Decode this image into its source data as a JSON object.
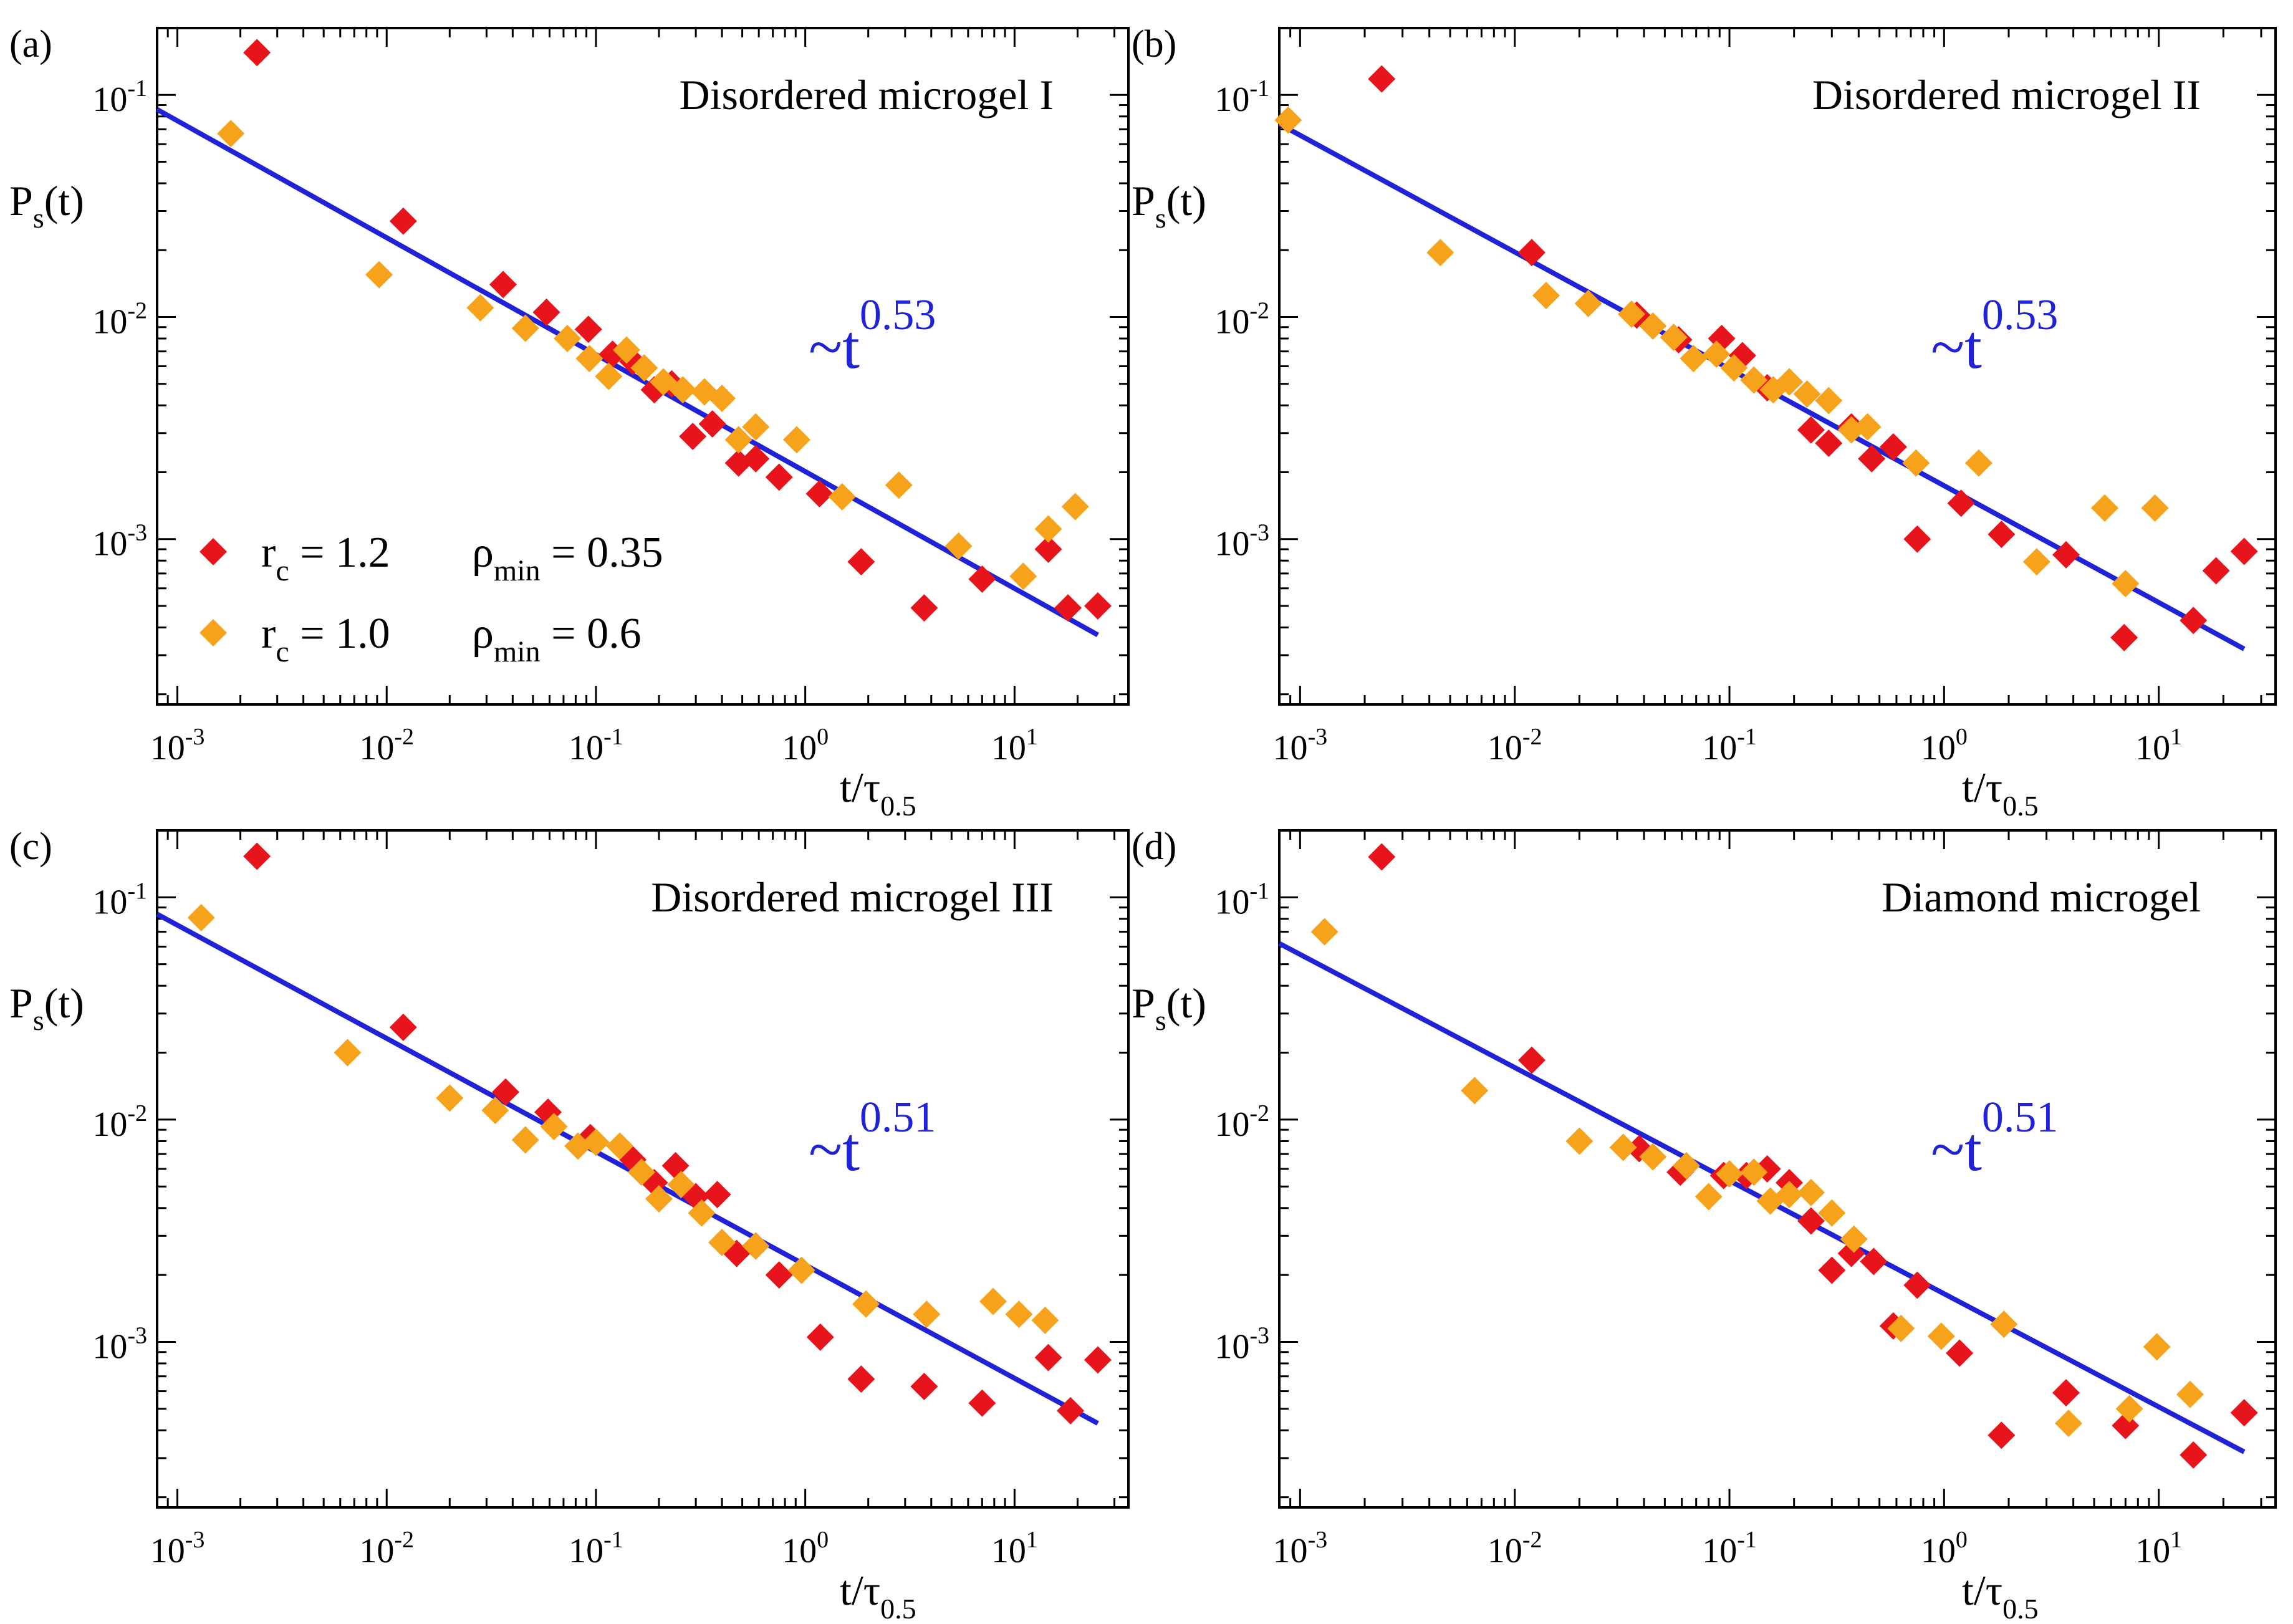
{
  "figure": {
    "colors": {
      "series_a": "#e8141b",
      "series_b": "#f7a21b",
      "fit_line": "#1f22d6",
      "axis": "#000000",
      "background": "#ffffff"
    }
  },
  "chart_data": [
    {
      "panel_label": "(a)",
      "title": "Disordered microgel I",
      "type": "scatter",
      "xlabel_main": "t/τ",
      "xlabel_sub": "0.5",
      "ylabel_main": "P",
      "ylabel_sub": "s",
      "ylabel_tail": "(t)",
      "x_scale": "log",
      "y_scale": "log",
      "xlim": [
        0.0008,
        35
      ],
      "ylim": [
        0.00018,
        0.2
      ],
      "x_ticks": [
        {
          "base": "10",
          "exp": "-3",
          "value": 0.001
        },
        {
          "base": "10",
          "exp": "-2",
          "value": 0.01
        },
        {
          "base": "10",
          "exp": "-1",
          "value": 0.1
        },
        {
          "base": "10",
          "exp": "0",
          "value": 1
        },
        {
          "base": "10",
          "exp": "1",
          "value": 10
        }
      ],
      "y_ticks": [
        {
          "base": "10",
          "exp": "-3",
          "value": 0.001
        },
        {
          "base": "10",
          "exp": "-2",
          "value": 0.01
        },
        {
          "base": "10",
          "exp": "-1",
          "value": 0.1
        }
      ],
      "annotation": {
        "prefix": "~t",
        "exponent": "0.53"
      },
      "fit_line": {
        "x": [
          0.0008,
          25
        ],
        "y": [
          0.086,
          0.00037
        ]
      },
      "legend": {
        "entries": [
          {
            "series": 0,
            "r_sym": "r",
            "r_sub": "c",
            "r_val": " = 1.2",
            "rho_sym": "ρ",
            "rho_sub": "min",
            "rho_val": " = 0.35"
          },
          {
            "series": 1,
            "r_sym": "r",
            "r_sub": "c",
            "r_val": " = 1.0",
            "rho_sym": "ρ",
            "rho_sub": "min",
            "rho_val": " = 0.6"
          }
        ]
      },
      "series": [
        {
          "x": [
            0.0024,
            0.012,
            0.036,
            0.058,
            0.092,
            0.12,
            0.15,
            0.19,
            0.23,
            0.29,
            0.36,
            0.48,
            0.58,
            0.75,
            1.17,
            1.85,
            3.7,
            7.0,
            14.5,
            18,
            25
          ],
          "y": [
            0.155,
            0.027,
            0.014,
            0.0105,
            0.0088,
            0.0068,
            0.0063,
            0.0047,
            0.005,
            0.0029,
            0.0033,
            0.0022,
            0.0023,
            0.0019,
            0.0016,
            0.00079,
            0.00049,
            0.00066,
            0.0009,
            0.00049,
            0.0005
          ]
        },
        {
          "x": [
            0.0018,
            0.0092,
            0.028,
            0.046,
            0.073,
            0.093,
            0.115,
            0.14,
            0.17,
            0.21,
            0.26,
            0.33,
            0.4,
            0.48,
            0.58,
            0.91,
            1.5,
            2.8,
            5.4,
            11,
            14.5,
            19.5
          ],
          "y": [
            0.067,
            0.0155,
            0.011,
            0.0089,
            0.008,
            0.0065,
            0.0054,
            0.0071,
            0.0059,
            0.0051,
            0.0047,
            0.0046,
            0.0043,
            0.0028,
            0.0032,
            0.0028,
            0.00155,
            0.00175,
            0.00093,
            0.00068,
            0.00111,
            0.0014
          ]
        }
      ]
    },
    {
      "panel_label": "(b)",
      "title": "Disordered microgel II",
      "type": "scatter",
      "xlabel_main": "t/τ",
      "xlabel_sub": "0.5",
      "ylabel_main": "P",
      "ylabel_sub": "s",
      "ylabel_tail": "(t)",
      "x_scale": "log",
      "y_scale": "log",
      "xlim": [
        0.0008,
        35
      ],
      "ylim": [
        0.00018,
        0.2
      ],
      "x_ticks": [
        {
          "base": "10",
          "exp": "-3",
          "value": 0.001
        },
        {
          "base": "10",
          "exp": "-2",
          "value": 0.01
        },
        {
          "base": "10",
          "exp": "-1",
          "value": 0.1
        },
        {
          "base": "10",
          "exp": "0",
          "value": 1
        },
        {
          "base": "10",
          "exp": "1",
          "value": 10
        }
      ],
      "y_ticks": [
        {
          "base": "10",
          "exp": "-3",
          "value": 0.001
        },
        {
          "base": "10",
          "exp": "-2",
          "value": 0.01
        },
        {
          "base": "10",
          "exp": "-1",
          "value": 0.1
        }
      ],
      "annotation": {
        "prefix": "~t",
        "exponent": "0.53"
      },
      "fit_line": {
        "x": [
          0.0008,
          25
        ],
        "y": [
          0.074,
          0.00032
        ]
      },
      "legend": null,
      "series": [
        {
          "x": [
            0.0024,
            0.012,
            0.037,
            0.058,
            0.092,
            0.115,
            0.15,
            0.19,
            0.24,
            0.29,
            0.37,
            0.46,
            0.58,
            0.75,
            1.2,
            1.85,
            3.7,
            6.9,
            14.5,
            18.5,
            25
          ],
          "y": [
            0.118,
            0.0195,
            0.0102,
            0.0079,
            0.008,
            0.0067,
            0.0048,
            0.0051,
            0.0031,
            0.0027,
            0.0032,
            0.0023,
            0.0026,
            0.001,
            0.00145,
            0.00105,
            0.00085,
            0.00036,
            0.00043,
            0.00072,
            0.00088
          ]
        },
        {
          "x": [
            0.00088,
            0.0045,
            0.014,
            0.022,
            0.035,
            0.044,
            0.055,
            0.068,
            0.087,
            0.105,
            0.13,
            0.16,
            0.19,
            0.23,
            0.29,
            0.37,
            0.44,
            0.74,
            1.45,
            2.7,
            5.6,
            7.0,
            9.6
          ],
          "y": [
            0.077,
            0.0195,
            0.0125,
            0.0115,
            0.0103,
            0.0091,
            0.0081,
            0.0065,
            0.0068,
            0.0059,
            0.0052,
            0.0047,
            0.0051,
            0.0045,
            0.0042,
            0.0031,
            0.0032,
            0.0022,
            0.0022,
            0.00079,
            0.00138,
            0.00063,
            0.00138
          ]
        }
      ]
    },
    {
      "panel_label": "(c)",
      "title": "Disordered microgel III",
      "type": "scatter",
      "xlabel_main": "t/τ",
      "xlabel_sub": "0.5",
      "ylabel_main": "P",
      "ylabel_sub": "s",
      "ylabel_tail": "(t)",
      "x_scale": "log",
      "y_scale": "log",
      "xlim": [
        0.0008,
        35
      ],
      "ylim": [
        0.00018,
        0.2
      ],
      "x_ticks": [
        {
          "base": "10",
          "exp": "-3",
          "value": 0.001
        },
        {
          "base": "10",
          "exp": "-2",
          "value": 0.01
        },
        {
          "base": "10",
          "exp": "-1",
          "value": 0.1
        },
        {
          "base": "10",
          "exp": "0",
          "value": 1
        },
        {
          "base": "10",
          "exp": "1",
          "value": 10
        }
      ],
      "y_ticks": [
        {
          "base": "10",
          "exp": "-3",
          "value": 0.001
        },
        {
          "base": "10",
          "exp": "-2",
          "value": 0.01
        },
        {
          "base": "10",
          "exp": "-1",
          "value": 0.1
        }
      ],
      "annotation": {
        "prefix": "~t",
        "exponent": "0.51"
      },
      "fit_line": {
        "x": [
          0.0008,
          25
        ],
        "y": [
          0.084,
          0.00043
        ]
      },
      "legend": null,
      "series": [
        {
          "x": [
            0.0024,
            0.012,
            0.037,
            0.059,
            0.094,
            0.15,
            0.19,
            0.24,
            0.3,
            0.38,
            0.47,
            0.58,
            0.75,
            1.18,
            1.85,
            3.7,
            7.0,
            14.5,
            18.5,
            25
          ],
          "y": [
            0.153,
            0.026,
            0.0133,
            0.0108,
            0.0083,
            0.0066,
            0.0052,
            0.0062,
            0.0045,
            0.0046,
            0.0025,
            0.0027,
            0.002,
            0.00105,
            0.00068,
            0.00063,
            0.00053,
            0.00085,
            0.00049,
            0.00083
          ]
        },
        {
          "x": [
            0.0013,
            0.0065,
            0.02,
            0.033,
            0.046,
            0.063,
            0.082,
            0.1,
            0.13,
            0.165,
            0.2,
            0.255,
            0.32,
            0.4,
            0.58,
            0.96,
            1.95,
            3.8,
            7.9,
            10.5,
            14
          ],
          "y": [
            0.081,
            0.02,
            0.0125,
            0.011,
            0.0081,
            0.0093,
            0.0076,
            0.0079,
            0.0076,
            0.0058,
            0.0044,
            0.0051,
            0.0038,
            0.0028,
            0.0027,
            0.0021,
            0.00148,
            0.00133,
            0.00152,
            0.00133,
            0.00125
          ]
        }
      ]
    },
    {
      "panel_label": "(d)",
      "title": "Diamond microgel",
      "type": "scatter",
      "xlabel_main": "t/τ",
      "xlabel_sub": "0.5",
      "ylabel_main": "P",
      "ylabel_sub": "s",
      "ylabel_tail": "(t)",
      "x_scale": "log",
      "y_scale": "log",
      "xlim": [
        0.0008,
        35
      ],
      "ylim": [
        0.00018,
        0.2
      ],
      "x_ticks": [
        {
          "base": "10",
          "exp": "-3",
          "value": 0.001
        },
        {
          "base": "10",
          "exp": "-2",
          "value": 0.01
        },
        {
          "base": "10",
          "exp": "-1",
          "value": 0.1
        },
        {
          "base": "10",
          "exp": "0",
          "value": 1
        },
        {
          "base": "10",
          "exp": "1",
          "value": 10
        }
      ],
      "y_ticks": [
        {
          "base": "10",
          "exp": "-3",
          "value": 0.001
        },
        {
          "base": "10",
          "exp": "-2",
          "value": 0.01
        },
        {
          "base": "10",
          "exp": "-1",
          "value": 0.1
        }
      ],
      "annotation": {
        "prefix": "~t",
        "exponent": "0.51"
      },
      "fit_line": {
        "x": [
          0.0008,
          25
        ],
        "y": [
          0.062,
          0.00032
        ]
      },
      "legend": null,
      "series": [
        {
          "x": [
            0.0024,
            0.012,
            0.038,
            0.059,
            0.094,
            0.12,
            0.15,
            0.19,
            0.24,
            0.3,
            0.37,
            0.47,
            0.58,
            0.75,
            1.18,
            1.85,
            3.7,
            7.0,
            14.5,
            25
          ],
          "y": [
            0.152,
            0.0185,
            0.0074,
            0.0058,
            0.0056,
            0.0056,
            0.006,
            0.0052,
            0.0035,
            0.0021,
            0.0025,
            0.0023,
            0.00118,
            0.0018,
            0.00089,
            0.00038,
            0.00059,
            0.00042,
            0.00031,
            0.00048
          ]
        },
        {
          "x": [
            0.0013,
            0.0065,
            0.02,
            0.032,
            0.044,
            0.063,
            0.08,
            0.1,
            0.13,
            0.155,
            0.19,
            0.24,
            0.3,
            0.38,
            0.63,
            0.97,
            1.9,
            3.8,
            7.3,
            9.8,
            14
          ],
          "y": [
            0.07,
            0.0135,
            0.008,
            0.0075,
            0.0068,
            0.0062,
            0.0045,
            0.0057,
            0.0058,
            0.0043,
            0.0046,
            0.0047,
            0.0038,
            0.0029,
            0.00115,
            0.00106,
            0.0012,
            0.00043,
            0.0005,
            0.00095,
            0.00058
          ]
        }
      ]
    }
  ]
}
